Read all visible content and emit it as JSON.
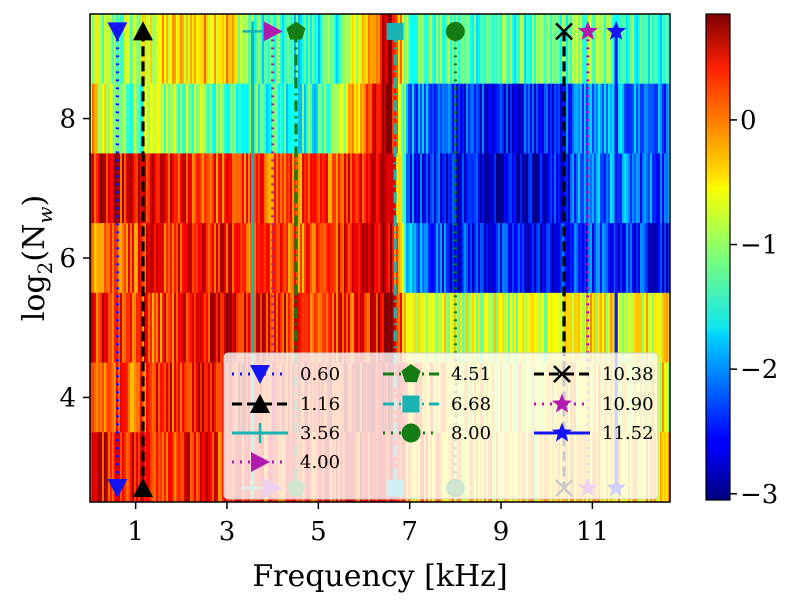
{
  "chart_data": {
    "type": "heatmap",
    "title": "",
    "xlabel": "Frequency [kHz]",
    "ylabel_parts": {
      "base": "log",
      "sub": "2",
      "arg": "(N",
      "argsub": "w",
      "close": ")"
    },
    "xlim": [
      0,
      12.7
    ],
    "ylim": [
      2.5,
      9.5
    ],
    "xticks": [
      1,
      3,
      5,
      7,
      9,
      11
    ],
    "xtick_labels": [
      "1",
      "3",
      "5",
      "7",
      "9",
      "11"
    ],
    "yticks": [
      4,
      6,
      8
    ],
    "ytick_labels": [
      "4",
      "6",
      "8"
    ],
    "colorbar": {
      "range": [
        -3.05,
        0.85
      ],
      "ticks": [
        0,
        -1,
        -2,
        -3
      ],
      "tick_labels": [
        "0",
        "−1",
        "−2",
        "−3"
      ],
      "colormap": "jet"
    },
    "rows": [
      3,
      4,
      5,
      6,
      7,
      8,
      9
    ],
    "row_profiles": [
      {
        "row": 9,
        "base": [
          [
            0,
            -0.9
          ],
          [
            0.6,
            -1.2
          ],
          [
            1.5,
            -0.6
          ],
          [
            3,
            -0.3
          ],
          [
            3.6,
            -1.3
          ],
          [
            4.5,
            -1.5
          ],
          [
            5.5,
            -1.3
          ],
          [
            6.6,
            0.6
          ],
          [
            7,
            -1.2
          ],
          [
            8,
            -1.3
          ],
          [
            10,
            -1.3
          ],
          [
            11,
            -1.1
          ],
          [
            12.7,
            -1.5
          ]
        ]
      },
      {
        "row": 8,
        "base": [
          [
            0,
            -0.4
          ],
          [
            0.6,
            -1.2
          ],
          [
            1.5,
            -1.0
          ],
          [
            3,
            -1.2
          ],
          [
            5,
            -1.5
          ],
          [
            6.6,
            0.7
          ],
          [
            7,
            -2.0
          ],
          [
            8,
            -2.4
          ],
          [
            10,
            -2.5
          ],
          [
            11,
            -2.0
          ],
          [
            12.7,
            -2.2
          ]
        ]
      },
      {
        "row": 7,
        "base": [
          [
            0,
            0.4
          ],
          [
            1.5,
            0.3
          ],
          [
            3,
            0.1
          ],
          [
            5,
            0.0
          ],
          [
            6.6,
            0.7
          ],
          [
            7,
            -2.3
          ],
          [
            8,
            -2.5
          ],
          [
            10,
            -2.7
          ],
          [
            11,
            -2.0
          ],
          [
            12.7,
            -2.3
          ]
        ]
      },
      {
        "row": 6,
        "base": [
          [
            0,
            0.0
          ],
          [
            1.5,
            0.2
          ],
          [
            3,
            0.3
          ],
          [
            5,
            0.0
          ],
          [
            6.6,
            0.7
          ],
          [
            7,
            -2.0
          ],
          [
            8,
            -2.4
          ],
          [
            10,
            -2.6
          ],
          [
            11,
            -2.3
          ],
          [
            12.7,
            -2.5
          ]
        ]
      },
      {
        "row": 5,
        "base": [
          [
            0,
            0.3
          ],
          [
            1.5,
            0.1
          ],
          [
            3,
            0.5
          ],
          [
            5,
            0.2
          ],
          [
            6,
            0.2
          ],
          [
            6.6,
            0.6
          ],
          [
            7,
            -0.6
          ],
          [
            8,
            -0.8
          ],
          [
            10,
            -0.8
          ],
          [
            11,
            -0.6
          ],
          [
            12.7,
            -0.7
          ]
        ]
      },
      {
        "row": 4,
        "base": [
          [
            0,
            -0.1
          ],
          [
            1.5,
            0.2
          ],
          [
            3,
            0.4
          ],
          [
            5,
            0.2
          ],
          [
            6.6,
            0.6
          ],
          [
            7,
            -0.2
          ],
          [
            8,
            -0.5
          ],
          [
            10,
            -0.6
          ],
          [
            11,
            -0.5
          ],
          [
            12.7,
            -0.6
          ]
        ]
      },
      {
        "row": 3,
        "base": [
          [
            0,
            0.4
          ],
          [
            1.5,
            0.3
          ],
          [
            3,
            0.2
          ],
          [
            5,
            0.1
          ],
          [
            6.6,
            0.5
          ],
          [
            7,
            -0.2
          ],
          [
            8,
            -0.4
          ],
          [
            10,
            -0.5
          ],
          [
            11,
            -0.3
          ],
          [
            12.7,
            -0.4
          ]
        ]
      }
    ],
    "series": [
      {
        "name": "0.60",
        "x": 0.6,
        "color": "#1414f5",
        "style": "dotted",
        "marker": "triangle-down"
      },
      {
        "name": "1.16",
        "x": 1.16,
        "color": "#000000",
        "style": "dashed",
        "marker": "triangle-up"
      },
      {
        "name": "3.56",
        "x": 3.56,
        "color": "#1ab3b3",
        "style": "solid",
        "marker": "plus"
      },
      {
        "name": "4.00",
        "x": 4.0,
        "color": "#b01ab0",
        "style": "dotted",
        "marker": "triangle-right"
      },
      {
        "name": "4.51",
        "x": 4.51,
        "color": "#137d13",
        "style": "dashdot",
        "marker": "pentagon"
      },
      {
        "name": "6.68",
        "x": 6.68,
        "color": "#1ab3b3",
        "style": "dashdot",
        "marker": "square"
      },
      {
        "name": "8.00",
        "x": 8.0,
        "color": "#137d13",
        "style": "dotted",
        "marker": "circle"
      },
      {
        "name": "10.38",
        "x": 10.38,
        "color": "#000000",
        "style": "dashed",
        "marker": "x"
      },
      {
        "name": "10.90",
        "x": 10.9,
        "color": "#b01ab0",
        "style": "dotted",
        "marker": "star"
      },
      {
        "name": "11.52",
        "x": 11.52,
        "color": "#1414f5",
        "style": "solid",
        "marker": "star"
      }
    ],
    "legend": {
      "location": "lower-right",
      "columns": 3
    }
  }
}
